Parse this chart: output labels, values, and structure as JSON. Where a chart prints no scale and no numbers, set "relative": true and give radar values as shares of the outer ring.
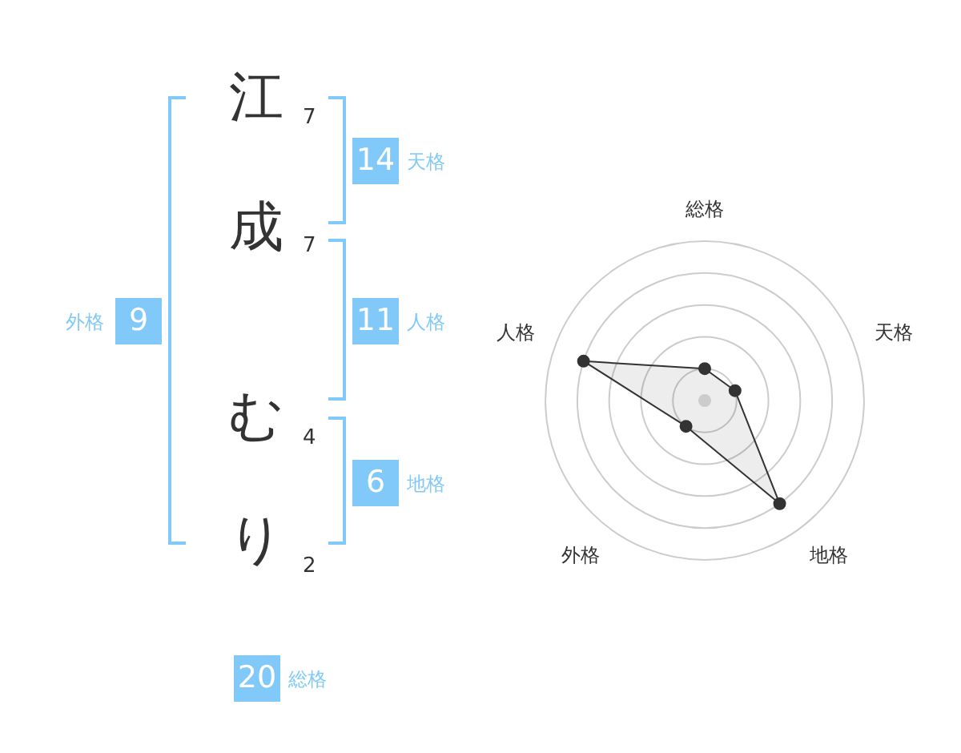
{
  "chart_data": [
    {
      "type": "other",
      "categories": [
        "江",
        "成",
        "む",
        "り"
      ],
      "values": [
        7,
        7,
        4,
        2
      ],
      "data_labels": true
    },
    {
      "type": "other",
      "categories": [
        "天格",
        "人格",
        "地格",
        "外格",
        "総格"
      ],
      "values": [
        14,
        11,
        6,
        9,
        20
      ],
      "color": "#80c9f8",
      "data_labels": true
    },
    {
      "type": "radar",
      "categories": [
        "総格",
        "天格",
        "地格",
        "外格",
        "人格"
      ],
      "relative": true,
      "series": [
        {
          "color": "#333333",
          "values": [
            0.2,
            0.2,
            0.8,
            0.2,
            0.8
          ]
        }
      ],
      "grid": true,
      "marker": "circle",
      "line_style": "solid"
    }
  ]
}
